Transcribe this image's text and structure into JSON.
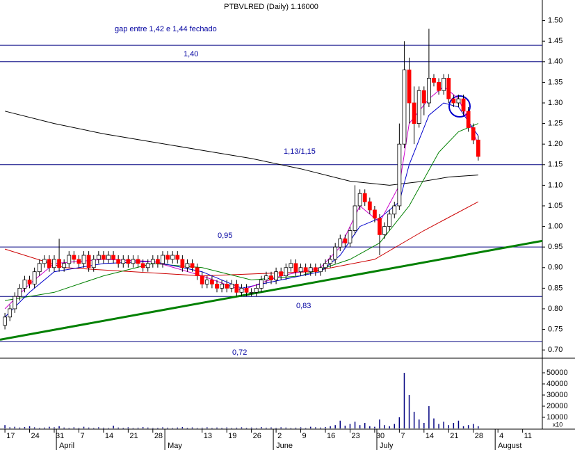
{
  "chart_data": {
    "type": "candlestick",
    "title": "PTBVLRED (Daily) 1.16000",
    "open": [
      0.76,
      0.78,
      0.8,
      0.83,
      0.85,
      0.87,
      0.86,
      0.89,
      0.91,
      0.92,
      0.9,
      0.92,
      0.9,
      0.91,
      0.93,
      0.92,
      0.91,
      0.93,
      0.9,
      0.92,
      0.93,
      0.92,
      0.93,
      0.92,
      0.91,
      0.92,
      0.91,
      0.92,
      0.91,
      0.9,
      0.91,
      0.92,
      0.91,
      0.93,
      0.92,
      0.93,
      0.92,
      0.9,
      0.91,
      0.9,
      0.88,
      0.86,
      0.87,
      0.86,
      0.85,
      0.86,
      0.85,
      0.86,
      0.84,
      0.85,
      0.84,
      0.84,
      0.85,
      0.87,
      0.88,
      0.87,
      0.89,
      0.88,
      0.9,
      0.91,
      0.89,
      0.9,
      0.89,
      0.9,
      0.89,
      0.9,
      0.91,
      0.92,
      0.95,
      0.97,
      0.96,
      0.99,
      1.05,
      1.08,
      1.06,
      1.04,
      1.02,
      0.98,
      1.0,
      1.03,
      1.05,
      1.2,
      1.38,
      1.3,
      1.25,
      1.33,
      1.3,
      1.36,
      1.35,
      1.33,
      1.36,
      1.31,
      1.3,
      1.31,
      1.28,
      1.24,
      1.21
    ],
    "high": [
      0.79,
      0.81,
      0.84,
      0.86,
      0.88,
      0.88,
      0.9,
      0.92,
      0.93,
      0.93,
      0.93,
      0.97,
      0.92,
      0.94,
      0.94,
      0.93,
      0.94,
      0.94,
      0.93,
      0.94,
      0.94,
      0.94,
      0.94,
      0.93,
      0.93,
      0.93,
      0.93,
      0.93,
      0.92,
      0.92,
      0.93,
      0.93,
      0.94,
      0.94,
      0.94,
      0.94,
      0.93,
      0.92,
      0.92,
      0.91,
      0.89,
      0.88,
      0.88,
      0.87,
      0.87,
      0.87,
      0.87,
      0.87,
      0.86,
      0.86,
      0.85,
      0.86,
      0.88,
      0.89,
      0.89,
      0.9,
      0.9,
      0.91,
      0.92,
      0.92,
      0.91,
      0.91,
      0.91,
      0.91,
      0.91,
      0.92,
      0.93,
      0.96,
      0.98,
      0.98,
      1.0,
      1.1,
      1.09,
      1.09,
      1.07,
      1.05,
      1.03,
      1.01,
      1.04,
      1.06,
      1.25,
      1.45,
      1.41,
      1.34,
      1.34,
      1.34,
      1.48,
      1.37,
      1.36,
      1.37,
      1.37,
      1.32,
      1.32,
      1.32,
      1.29,
      1.25,
      1.22
    ],
    "low": [
      0.75,
      0.77,
      0.79,
      0.82,
      0.84,
      0.85,
      0.85,
      0.88,
      0.9,
      0.89,
      0.89,
      0.89,
      0.89,
      0.9,
      0.91,
      0.9,
      0.9,
      0.89,
      0.89,
      0.91,
      0.91,
      0.91,
      0.91,
      0.9,
      0.9,
      0.9,
      0.9,
      0.9,
      0.89,
      0.89,
      0.9,
      0.9,
      0.9,
      0.91,
      0.91,
      0.91,
      0.89,
      0.89,
      0.89,
      0.87,
      0.85,
      0.85,
      0.85,
      0.84,
      0.84,
      0.84,
      0.84,
      0.83,
      0.83,
      0.83,
      0.83,
      0.83,
      0.84,
      0.86,
      0.86,
      0.86,
      0.87,
      0.87,
      0.89,
      0.88,
      0.88,
      0.88,
      0.88,
      0.88,
      0.88,
      0.89,
      0.9,
      0.91,
      0.94,
      0.95,
      0.95,
      0.98,
      1.04,
      1.05,
      1.03,
      1.01,
      0.93,
      0.97,
      0.99,
      1.02,
      1.04,
      1.19,
      1.25,
      1.2,
      1.24,
      1.27,
      1.29,
      1.34,
      1.32,
      1.32,
      1.3,
      1.29,
      1.29,
      1.27,
      1.23,
      1.2,
      1.16
    ],
    "close": [
      0.78,
      0.8,
      0.83,
      0.85,
      0.87,
      0.86,
      0.89,
      0.91,
      0.92,
      0.9,
      0.92,
      0.9,
      0.91,
      0.93,
      0.92,
      0.91,
      0.93,
      0.9,
      0.92,
      0.93,
      0.92,
      0.93,
      0.92,
      0.91,
      0.92,
      0.91,
      0.92,
      0.91,
      0.9,
      0.91,
      0.92,
      0.91,
      0.93,
      0.92,
      0.93,
      0.92,
      0.9,
      0.91,
      0.9,
      0.88,
      0.86,
      0.87,
      0.86,
      0.85,
      0.86,
      0.85,
      0.86,
      0.84,
      0.85,
      0.84,
      0.84,
      0.85,
      0.87,
      0.88,
      0.87,
      0.89,
      0.88,
      0.9,
      0.91,
      0.89,
      0.9,
      0.89,
      0.9,
      0.89,
      0.9,
      0.91,
      0.92,
      0.95,
      0.97,
      0.96,
      0.99,
      1.05,
      1.08,
      1.06,
      1.04,
      1.02,
      0.98,
      1.0,
      1.03,
      1.05,
      1.2,
      1.38,
      1.3,
      1.25,
      1.33,
      1.3,
      1.36,
      1.35,
      1.33,
      1.36,
      1.31,
      1.3,
      1.31,
      1.28,
      1.24,
      1.21,
      1.17
    ],
    "volume": [
      3000,
      1000,
      1500,
      800,
      1200,
      2000,
      1000,
      500,
      800,
      1500,
      1000,
      2000,
      800,
      500,
      1000,
      600,
      1500,
      800,
      500,
      1000,
      700,
      500,
      2500,
      800,
      600,
      1000,
      500,
      700,
      1200,
      800,
      500,
      600,
      1000,
      700,
      500,
      800,
      1200,
      600,
      900,
      500,
      700,
      1000,
      500,
      800,
      600,
      900,
      500,
      700,
      1000,
      600,
      800,
      500,
      1200,
      700,
      900,
      600,
      1000,
      800,
      500,
      700,
      1000,
      500,
      1500,
      1000,
      800,
      1200,
      2000,
      3000,
      7000,
      2500,
      4000,
      6000,
      3000,
      5000,
      2000,
      1500,
      8000,
      3000,
      2000,
      4000,
      10000,
      50000,
      30000,
      15000,
      8000,
      5000,
      20000,
      9000,
      4000,
      6000,
      3000,
      5000,
      7000,
      2000,
      3000,
      4000,
      2000
    ],
    "up_color": "#ffffff",
    "down_color": "#ff0000",
    "volume_color": "#000080",
    "moving_averages": [
      {
        "color": "#000000",
        "x": [
          0,
          10,
          20,
          30,
          40,
          50,
          60,
          70,
          78,
          85,
          90,
          96
        ],
        "values": [
          1.28,
          1.25,
          1.225,
          1.205,
          1.185,
          1.165,
          1.14,
          1.11,
          1.1,
          1.11,
          1.12,
          1.125
        ]
      },
      {
        "color": "#cc0000",
        "x": [
          0,
          12,
          40,
          62,
          75,
          85,
          96
        ],
        "values": [
          0.945,
          0.9,
          0.88,
          0.89,
          0.92,
          0.99,
          1.06
        ]
      },
      {
        "color": "#008000",
        "x": [
          0,
          10,
          20,
          30,
          40,
          50,
          60,
          70,
          76,
          82,
          88,
          92,
          96
        ],
        "values": [
          0.82,
          0.84,
          0.88,
          0.91,
          0.9,
          0.87,
          0.88,
          0.92,
          0.96,
          1.05,
          1.18,
          1.23,
          1.25
        ]
      },
      {
        "color": "#0000cc",
        "x": [
          0,
          5,
          10,
          20,
          30,
          40,
          48,
          56,
          64,
          68,
          72,
          76,
          80,
          82,
          86,
          89,
          92,
          96
        ],
        "values": [
          0.78,
          0.84,
          0.89,
          0.91,
          0.915,
          0.89,
          0.85,
          0.87,
          0.89,
          0.93,
          1.0,
          1.02,
          1.06,
          1.15,
          1.27,
          1.3,
          1.29,
          1.22
        ]
      },
      {
        "color": "#cc00cc",
        "x": [
          0,
          5,
          10,
          20,
          30,
          40,
          48,
          56,
          64,
          68,
          72,
          76,
          80,
          82,
          86,
          89,
          92,
          96
        ],
        "values": [
          0.8,
          0.86,
          0.91,
          0.92,
          0.915,
          0.88,
          0.845,
          0.88,
          0.9,
          0.95,
          1.05,
          1.01,
          1.1,
          1.25,
          1.31,
          1.34,
          1.31,
          1.2
        ]
      }
    ],
    "hlines": [
      1.44,
      1.4,
      1.15,
      0.95,
      0.83,
      0.72
    ],
    "hline_color": "#000080",
    "trendline": {
      "color": "#008000",
      "x": [
        -1,
        109
      ],
      "values": [
        0.725,
        0.965
      ]
    },
    "annotations": [
      "gap entre 1,42 e 1,44 fechado",
      "1,40",
      "1,13/1,15",
      "0,95",
      "0,83",
      "0,72"
    ],
    "ylim": [
      0.68,
      1.55
    ],
    "yticks": [
      {
        "value": 0.7,
        "label": "0.70"
      },
      {
        "value": 0.75,
        "label": "0.75"
      },
      {
        "value": 0.8,
        "label": "0.80"
      },
      {
        "value": 0.85,
        "label": "0.85"
      },
      {
        "value": 0.9,
        "label": "0.90"
      },
      {
        "value": 0.95,
        "label": "0.95"
      },
      {
        "value": 1.0,
        "label": "1.00"
      },
      {
        "value": 1.05,
        "label": "1.05"
      },
      {
        "value": 1.1,
        "label": "1.10"
      },
      {
        "value": 1.15,
        "label": "1.15"
      },
      {
        "value": 1.2,
        "label": "1.20"
      },
      {
        "value": 1.25,
        "label": "1.25"
      },
      {
        "value": 1.3,
        "label": "1.30"
      },
      {
        "value": 1.35,
        "label": "1.35"
      },
      {
        "value": 1.4,
        "label": "1.40"
      },
      {
        "value": 1.45,
        "label": "1.45"
      },
      {
        "value": 1.5,
        "label": "1.50"
      }
    ],
    "vlim": [
      0,
      60000
    ],
    "vticks": [
      10000,
      20000,
      30000,
      40000,
      50000
    ],
    "volume_axis_note": "x10",
    "xlim": [
      -1,
      109
    ],
    "xticks": [
      {
        "value": 0,
        "label": "17"
      },
      {
        "value": 5,
        "label": "24"
      },
      {
        "value": 10,
        "label": "31"
      },
      {
        "value": 15,
        "label": "7"
      },
      {
        "value": 20,
        "label": "14"
      },
      {
        "value": 25,
        "label": "21"
      },
      {
        "value": 30,
        "label": "28"
      },
      {
        "value": 40,
        "label": "13"
      },
      {
        "value": 45,
        "label": "19"
      },
      {
        "value": 50,
        "label": "26"
      },
      {
        "value": 55,
        "label": "2"
      },
      {
        "value": 60,
        "label": "9"
      },
      {
        "value": 65,
        "label": "16"
      },
      {
        "value": 70,
        "label": "23"
      },
      {
        "value": 75,
        "label": "30"
      },
      {
        "value": 80,
        "label": "7"
      },
      {
        "value": 85,
        "label": "14"
      },
      {
        "value": 90,
        "label": "21"
      },
      {
        "value": 95,
        "label": "28"
      },
      {
        "value": 100,
        "label": "4"
      },
      {
        "value": 105,
        "label": "11"
      }
    ],
    "months": [
      {
        "value": 11,
        "label": "April"
      },
      {
        "value": 33,
        "label": "May"
      },
      {
        "value": 55,
        "label": "June"
      },
      {
        "value": 76,
        "label": "July"
      },
      {
        "value": 100,
        "label": "August"
      }
    ]
  }
}
